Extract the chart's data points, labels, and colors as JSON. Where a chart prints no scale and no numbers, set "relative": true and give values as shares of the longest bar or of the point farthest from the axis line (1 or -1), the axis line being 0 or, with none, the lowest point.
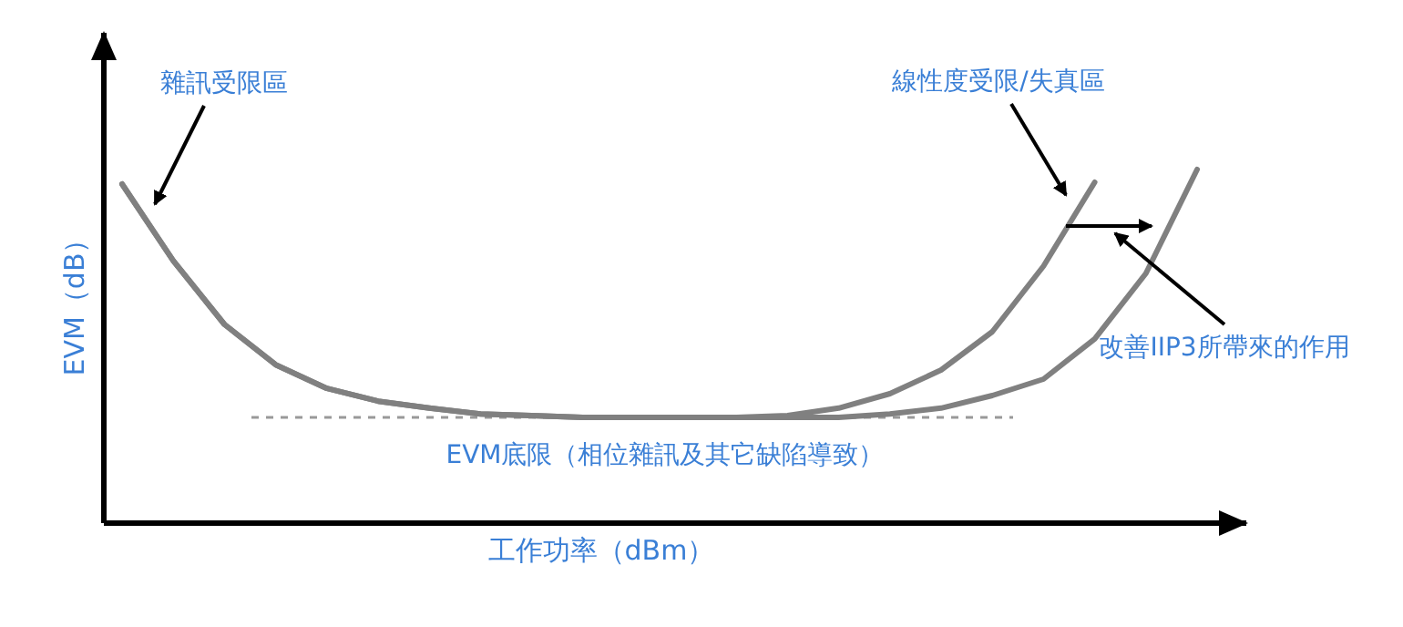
{
  "chart_data": {
    "type": "line",
    "relative": true,
    "xlabel": "工作功率（dBm）",
    "ylabel": "EVM（dB）",
    "line_style": "solid",
    "categories": [
      null,
      null,
      null,
      null,
      null,
      null,
      null,
      null,
      null,
      null,
      null,
      null,
      null,
      null,
      null,
      null,
      null,
      null,
      null,
      null,
      null,
      null
    ],
    "series": [
      {
        "color": "#808080",
        "values": [
          0.959,
          0.742,
          0.562,
          0.448,
          0.381,
          0.345,
          0.325,
          0.309,
          0.304,
          0.299,
          0.299,
          0.299,
          0.299,
          0.304,
          0.325,
          0.366,
          0.433,
          0.541,
          0.727,
          0.964,
          null,
          null
        ]
      },
      {
        "color": "#808080",
        "values": [
          0.959,
          0.742,
          0.562,
          0.448,
          0.381,
          0.345,
          0.325,
          0.309,
          0.304,
          0.299,
          0.299,
          0.299,
          0.299,
          0.299,
          0.299,
          0.309,
          0.325,
          0.361,
          0.407,
          0.521,
          0.706,
          1
        ]
      }
    ],
    "ref_lines": [
      {
        "axis": "y",
        "value": 0.299,
        "label": "EVM底限（相位雜訊及其它缺陷導致）",
        "color": "#999999",
        "line_style": "dashed"
      }
    ],
    "annotations": [
      "雜訊受限區",
      "線性度受限/失真區",
      "改善IIP3所帶來的作用"
    ]
  }
}
